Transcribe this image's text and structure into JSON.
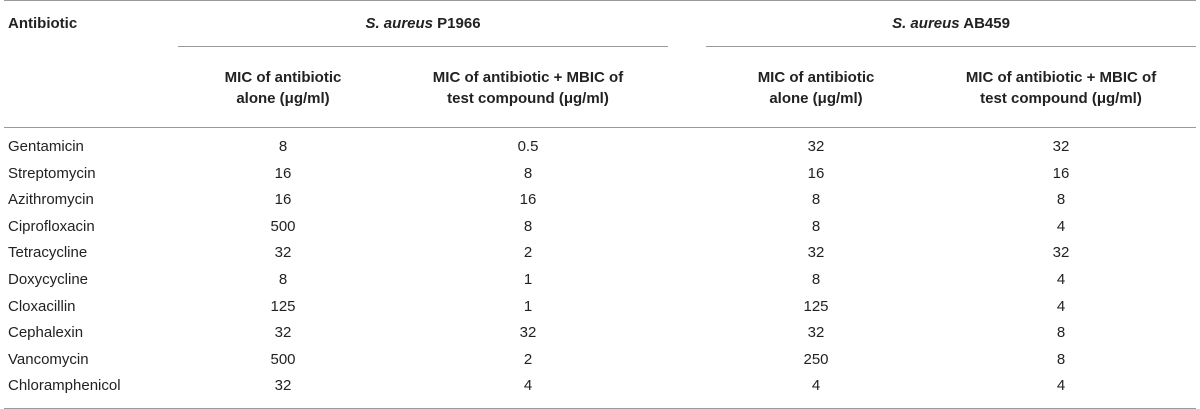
{
  "table": {
    "header": {
      "antibiotic": "Antibiotic",
      "strain1_italic": "S. aureus",
      "strain1_id": " P1966",
      "strain2_italic": "S. aureus",
      "strain2_id": " AB459",
      "col_alone_line1": "MIC of antibiotic",
      "col_alone_line2": "alone (μg/ml)",
      "col_combo_line1": "MIC of antibiotic + MBIC of",
      "col_combo_line2": "test compound (μg/ml)"
    },
    "rows": [
      {
        "name": "Gentamicin",
        "p_alone": "8",
        "p_combo": "0.5",
        "a_alone": "32",
        "a_combo": "32"
      },
      {
        "name": "Streptomycin",
        "p_alone": "16",
        "p_combo": "8",
        "a_alone": "16",
        "a_combo": "16"
      },
      {
        "name": "Azithromycin",
        "p_alone": "16",
        "p_combo": "16",
        "a_alone": "8",
        "a_combo": "8"
      },
      {
        "name": "Ciprofloxacin",
        "p_alone": "500",
        "p_combo": "8",
        "a_alone": "8",
        "a_combo": "4"
      },
      {
        "name": "Tetracycline",
        "p_alone": "32",
        "p_combo": "2",
        "a_alone": "32",
        "a_combo": "32"
      },
      {
        "name": "Doxycycline",
        "p_alone": "8",
        "p_combo": "1",
        "a_alone": "8",
        "a_combo": "4"
      },
      {
        "name": "Cloxacillin",
        "p_alone": "125",
        "p_combo": "1",
        "a_alone": "125",
        "a_combo": "4"
      },
      {
        "name": "Cephalexin",
        "p_alone": "32",
        "p_combo": "32",
        "a_alone": "32",
        "a_combo": "8"
      },
      {
        "name": "Vancomycin",
        "p_alone": "500",
        "p_combo": "2",
        "a_alone": "250",
        "a_combo": "8"
      },
      {
        "name": "Chloramphenicol",
        "p_alone": "32",
        "p_combo": "4",
        "a_alone": "4",
        "a_combo": "4"
      }
    ]
  }
}
